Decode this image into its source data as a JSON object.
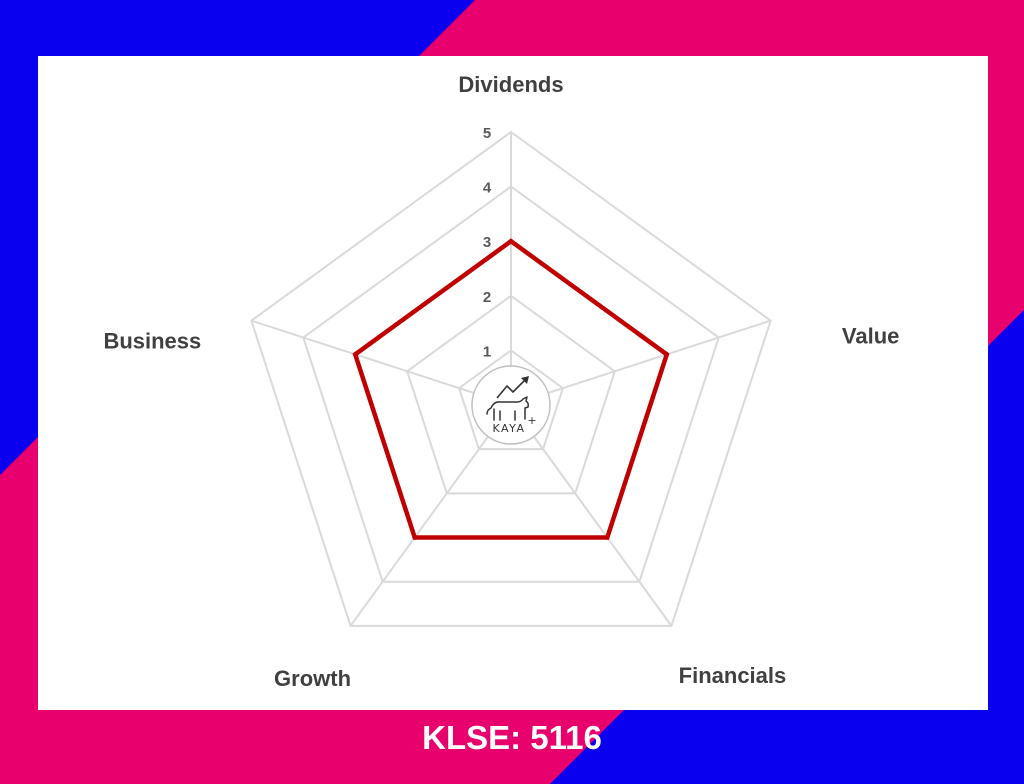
{
  "ticker_label": "KLSE: 5116",
  "logo": {
    "text": "KAYA",
    "superscript": "+"
  },
  "colors": {
    "blue": "#0a00f0",
    "pink": "#e8006d",
    "series": "#c00000",
    "grid": "#d9d9d9",
    "axis_label": "#404040",
    "tick_label": "#595959"
  },
  "chart_data": {
    "type": "radar",
    "axes": [
      "Dividends",
      "Value",
      "Financials",
      "Growth",
      "Business"
    ],
    "ticks": [
      "1",
      "2",
      "3",
      "4",
      "5"
    ],
    "range": [
      0,
      5
    ],
    "grid": true,
    "series": [
      {
        "values": [
          3,
          3,
          3,
          3,
          3
        ]
      }
    ]
  }
}
